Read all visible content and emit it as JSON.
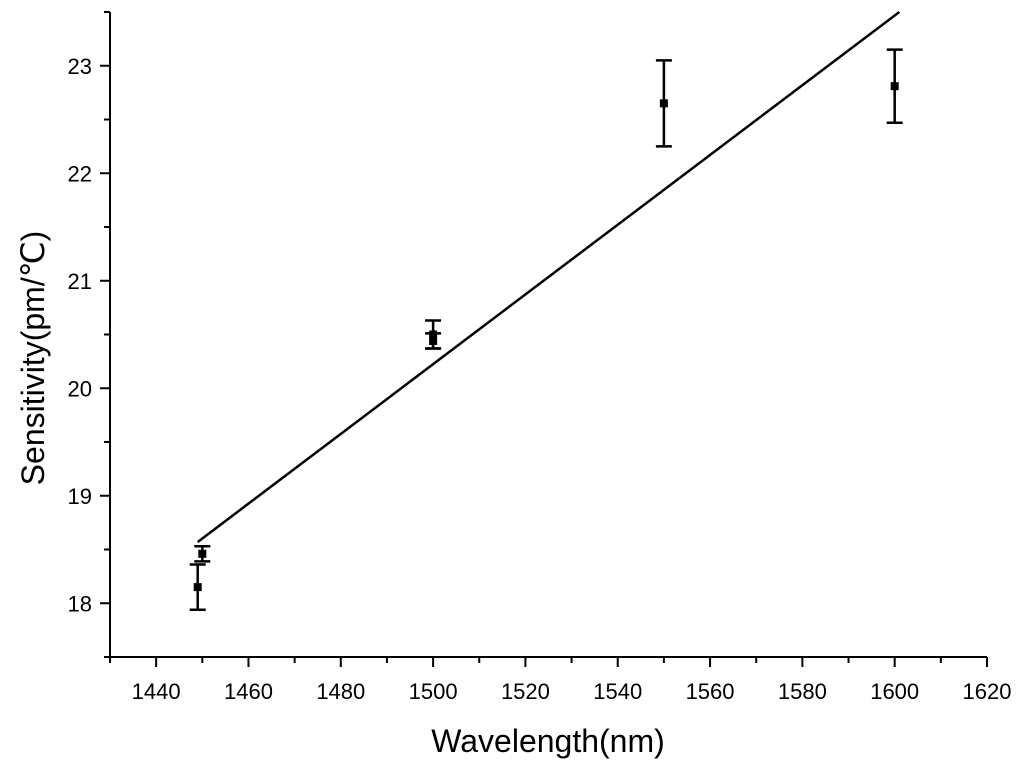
{
  "chart_data": {
    "type": "scatter",
    "title": "",
    "xlabel": "Wavelength(nm)",
    "ylabel": "Sensitivity(pm/℃)",
    "xlim": [
      1430,
      1620
    ],
    "ylim": [
      17.5,
      23.5
    ],
    "x_ticks": [
      1440,
      1460,
      1480,
      1500,
      1520,
      1540,
      1560,
      1580,
      1600,
      1620
    ],
    "y_ticks": [
      18,
      19,
      20,
      21,
      22,
      23
    ],
    "grid": false,
    "legend": "none",
    "series": [
      {
        "points": [
          {
            "x": 1449,
            "y": 18.15,
            "err": 0.21
          },
          {
            "x": 1450,
            "y": 18.46,
            "err": 0.07
          },
          {
            "x": 1500,
            "y": 20.44,
            "err": 0.07
          },
          {
            "x": 1500,
            "y": 20.5,
            "err": 0.13
          },
          {
            "x": 1550,
            "y": 22.65,
            "err": 0.4
          },
          {
            "x": 1600,
            "y": 22.81,
            "err": 0.34
          }
        ]
      }
    ],
    "fit_line": {
      "x": [
        1449,
        1601
      ],
      "y": [
        18.57,
        23.5
      ]
    },
    "colors": {
      "marker": "#000000",
      "line": "#000000",
      "axis": "#000000"
    }
  }
}
